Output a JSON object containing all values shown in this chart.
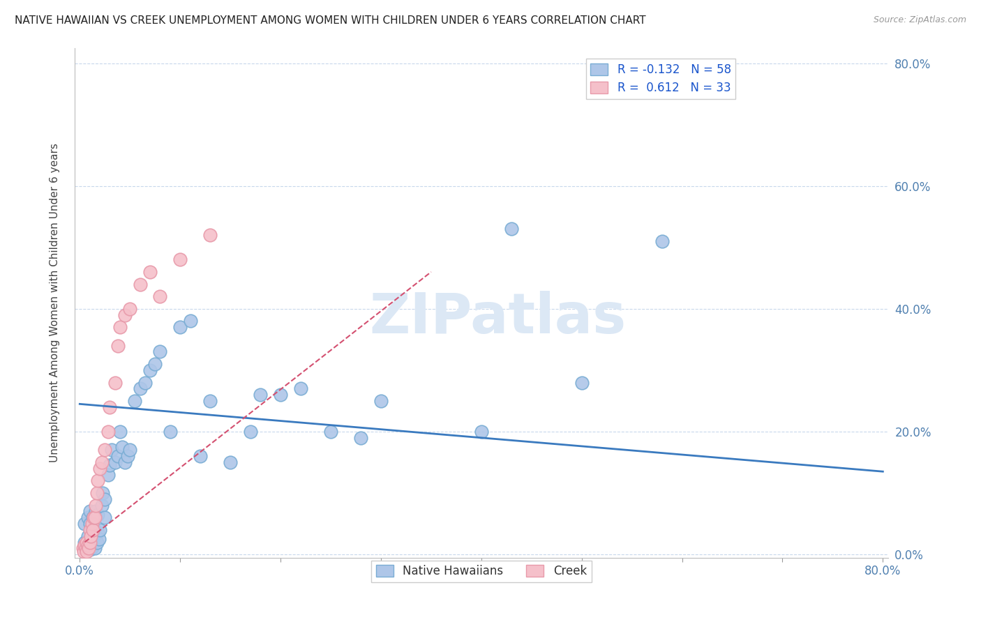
{
  "title": "NATIVE HAWAIIAN VS CREEK UNEMPLOYMENT AMONG WOMEN WITH CHILDREN UNDER 6 YEARS CORRELATION CHART",
  "source": "Source: ZipAtlas.com",
  "ylabel": "Unemployment Among Women with Children Under 6 years",
  "xlim": [
    -0.005,
    0.805
  ],
  "ylim": [
    -0.005,
    0.825
  ],
  "xticks": [
    0.0,
    0.1,
    0.2,
    0.3,
    0.4,
    0.5,
    0.6,
    0.7,
    0.8
  ],
  "xtick_labels_show": [
    "0.0%",
    "",
    "",
    "",
    "",
    "",
    "",
    "",
    "80.0%"
  ],
  "yticks": [
    0.0,
    0.2,
    0.4,
    0.6,
    0.8
  ],
  "ytick_labels": [
    "0.0%",
    "20.0%",
    "40.0%",
    "60.0%",
    "80.0%"
  ],
  "native_hawaiian_color": "#aec6e8",
  "creek_color": "#f5c0ca",
  "native_hawaiian_edge": "#7aadd4",
  "creek_edge": "#e89aaa",
  "trend_blue": "#3a7abf",
  "trend_pink": "#d45070",
  "watermark_color": "#dce8f5",
  "legend_R1": "-0.132",
  "legend_N1": "58",
  "legend_R2": "0.612",
  "legend_N2": "33",
  "native_hawaiians_x": [
    0.005,
    0.005,
    0.007,
    0.008,
    0.008,
    0.009,
    0.01,
    0.01,
    0.01,
    0.01,
    0.012,
    0.013,
    0.013,
    0.015,
    0.015,
    0.016,
    0.017,
    0.018,
    0.018,
    0.019,
    0.02,
    0.022,
    0.023,
    0.025,
    0.025,
    0.028,
    0.03,
    0.032,
    0.035,
    0.038,
    0.04,
    0.042,
    0.045,
    0.048,
    0.05,
    0.055,
    0.06,
    0.065,
    0.07,
    0.075,
    0.08,
    0.09,
    0.1,
    0.11,
    0.12,
    0.13,
    0.15,
    0.17,
    0.18,
    0.2,
    0.22,
    0.25,
    0.28,
    0.3,
    0.4,
    0.43,
    0.5,
    0.58
  ],
  "native_hawaiians_y": [
    0.02,
    0.05,
    0.01,
    0.03,
    0.06,
    0.015,
    0.008,
    0.025,
    0.05,
    0.07,
    0.012,
    0.03,
    0.06,
    0.01,
    0.04,
    0.07,
    0.02,
    0.035,
    0.065,
    0.025,
    0.04,
    0.08,
    0.1,
    0.06,
    0.09,
    0.13,
    0.145,
    0.17,
    0.15,
    0.16,
    0.2,
    0.175,
    0.15,
    0.16,
    0.17,
    0.25,
    0.27,
    0.28,
    0.3,
    0.31,
    0.33,
    0.2,
    0.37,
    0.38,
    0.16,
    0.25,
    0.15,
    0.2,
    0.26,
    0.26,
    0.27,
    0.2,
    0.19,
    0.25,
    0.2,
    0.53,
    0.28,
    0.51
  ],
  "creek_x": [
    0.003,
    0.004,
    0.005,
    0.006,
    0.007,
    0.007,
    0.008,
    0.009,
    0.01,
    0.01,
    0.011,
    0.012,
    0.013,
    0.014,
    0.015,
    0.016,
    0.017,
    0.018,
    0.02,
    0.022,
    0.025,
    0.028,
    0.03,
    0.035,
    0.038,
    0.04,
    0.045,
    0.05,
    0.06,
    0.07,
    0.08,
    0.1,
    0.13
  ],
  "creek_y": [
    0.01,
    0.005,
    0.015,
    0.01,
    0.005,
    0.02,
    0.015,
    0.01,
    0.02,
    0.04,
    0.03,
    0.05,
    0.04,
    0.06,
    0.06,
    0.08,
    0.1,
    0.12,
    0.14,
    0.15,
    0.17,
    0.2,
    0.24,
    0.28,
    0.34,
    0.37,
    0.39,
    0.4,
    0.44,
    0.46,
    0.42,
    0.48,
    0.52
  ],
  "blue_trend_x0": 0.0,
  "blue_trend_y0": 0.245,
  "blue_trend_x1": 0.8,
  "blue_trend_y1": 0.135,
  "pink_trend_x0": 0.005,
  "pink_trend_y0": 0.02,
  "pink_trend_x1": 0.35,
  "pink_trend_y1": 0.46
}
